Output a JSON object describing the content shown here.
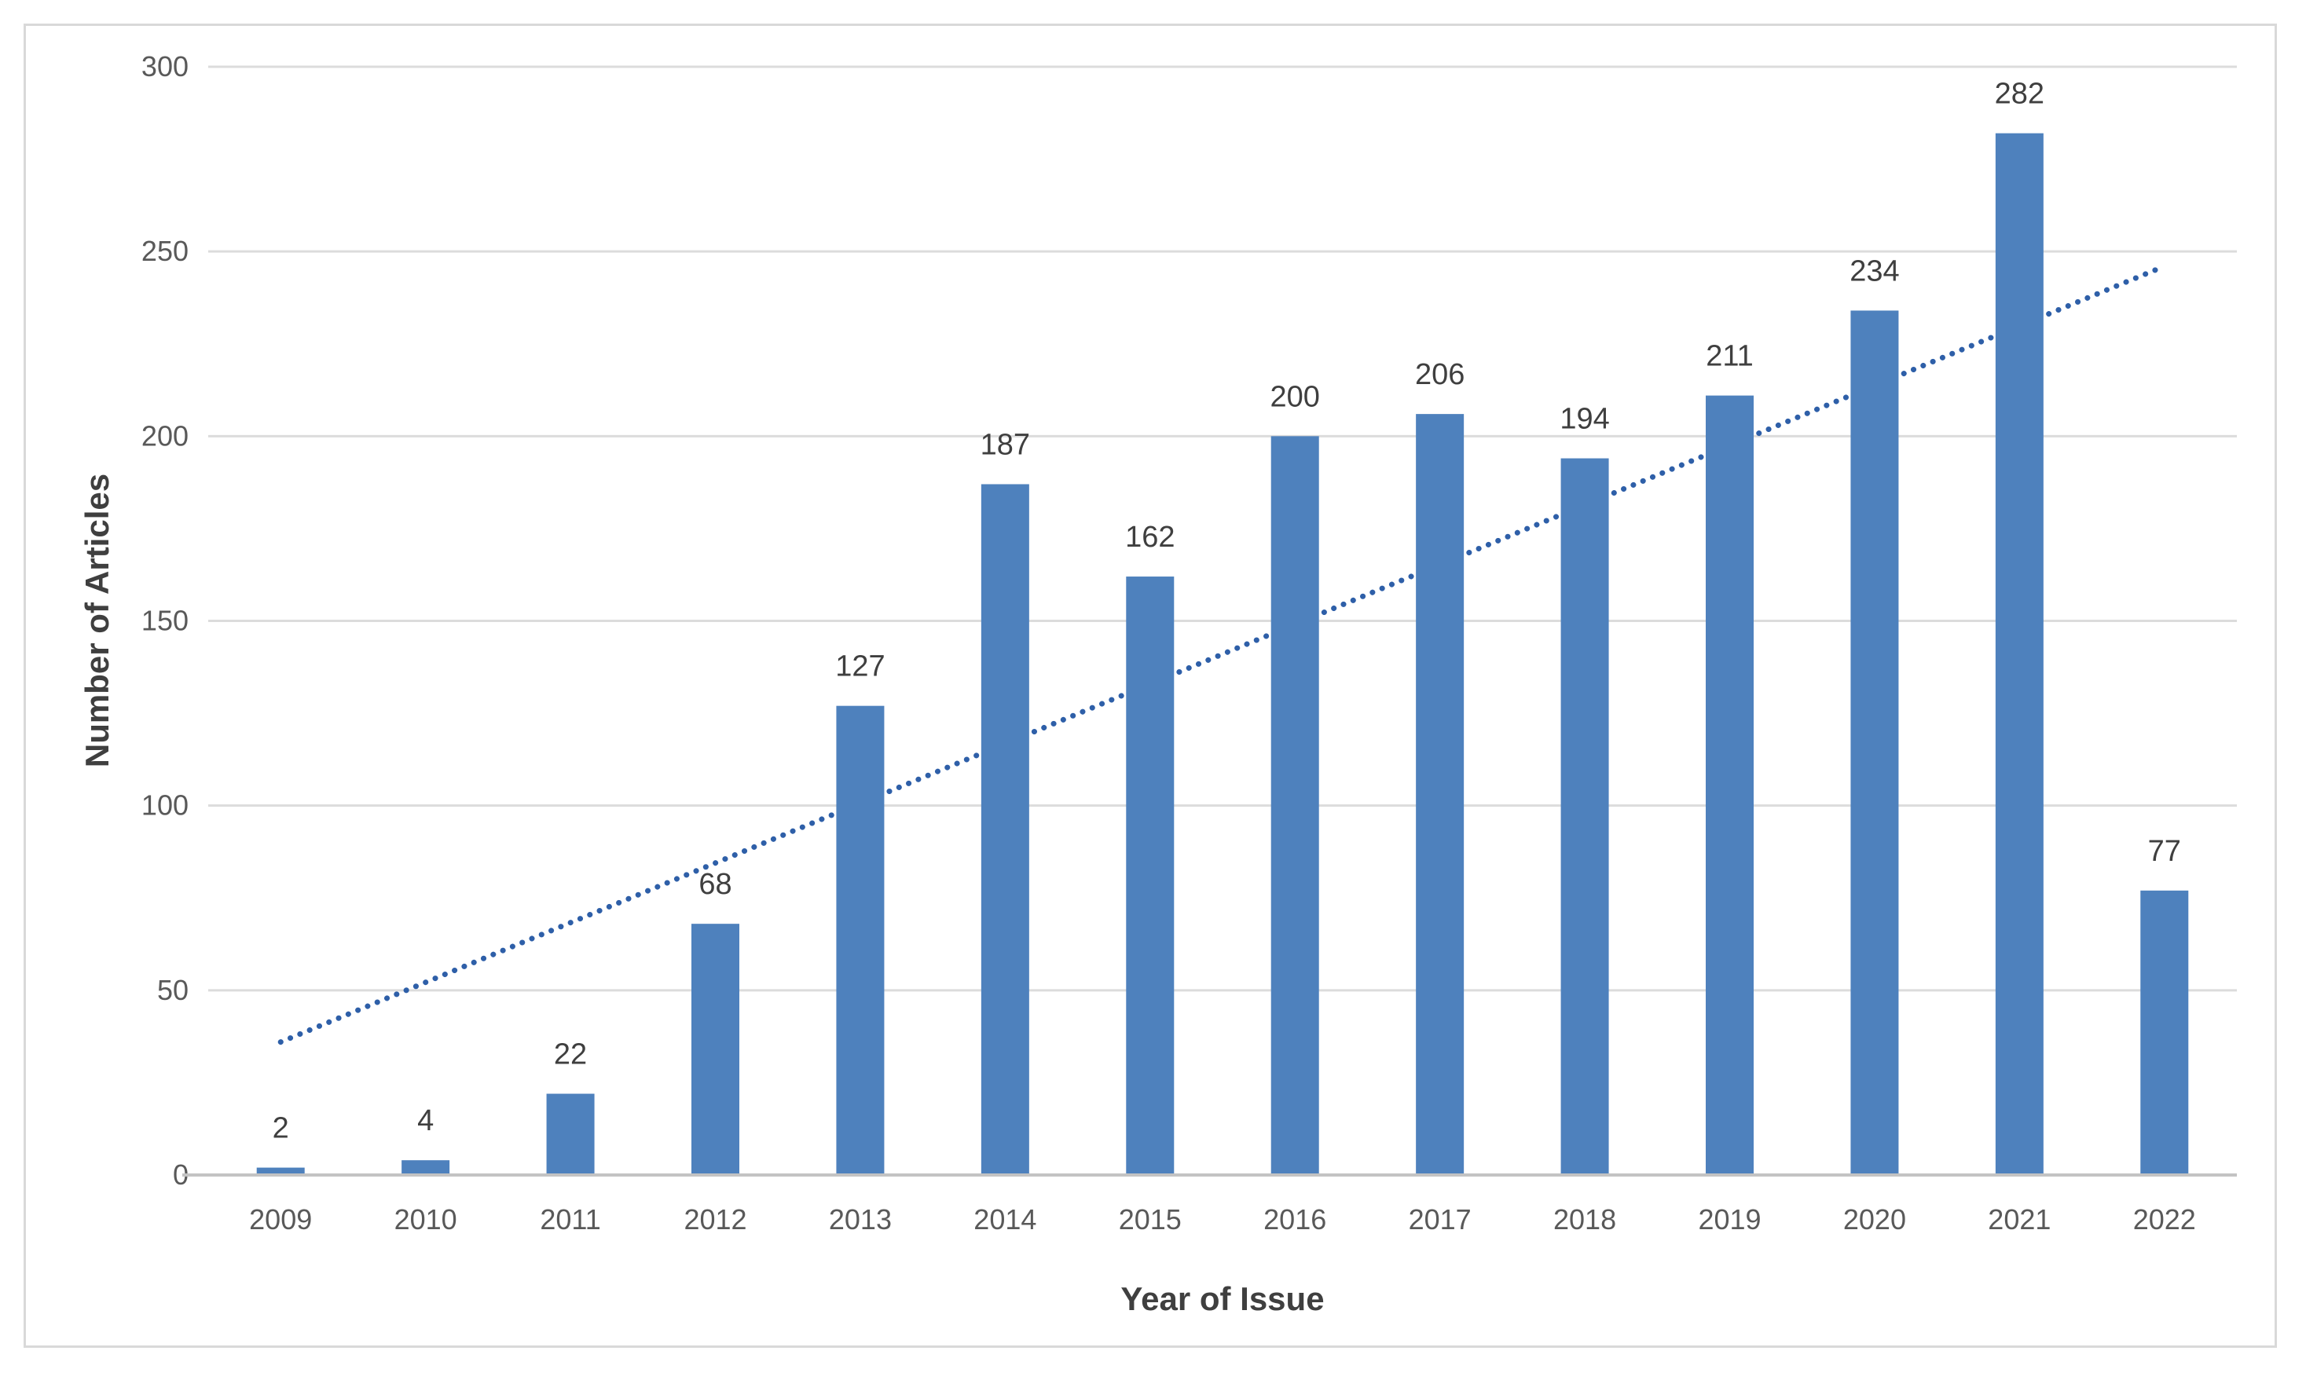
{
  "chart_data": {
    "type": "bar",
    "title": "",
    "xlabel": "Year of Issue",
    "ylabel": "Number of Articles",
    "categories": [
      "2009",
      "2010",
      "2011",
      "2012",
      "2013",
      "2014",
      "2015",
      "2016",
      "2017",
      "2018",
      "2019",
      "2020",
      "2021",
      "2022"
    ],
    "values": [
      2,
      4,
      22,
      68,
      127,
      187,
      162,
      200,
      206,
      194,
      211,
      234,
      282,
      77
    ],
    "data_labels": [
      2,
      4,
      22,
      68,
      127,
      187,
      162,
      200,
      206,
      194,
      211,
      234,
      282,
      77
    ],
    "ylim": [
      0,
      300
    ],
    "yticks": [
      0,
      50,
      100,
      150,
      200,
      250,
      300
    ],
    "grid": true,
    "legend": "none",
    "trendline": {
      "style": "dotted",
      "start_category": "2009",
      "end_category": "2022",
      "start_value": 36,
      "end_value": 246
    },
    "colors": {
      "bar": "#4e81bd",
      "trendline": "#2e5fa8",
      "gridline": "#dcdcdc",
      "axis_line": "#c3c3c3",
      "tick_label": "#595959",
      "data_label": "#3f3f3f",
      "axis_title": "#3f3f3f",
      "frame_border": "#d9d9d9",
      "background": "#ffffff"
    }
  }
}
